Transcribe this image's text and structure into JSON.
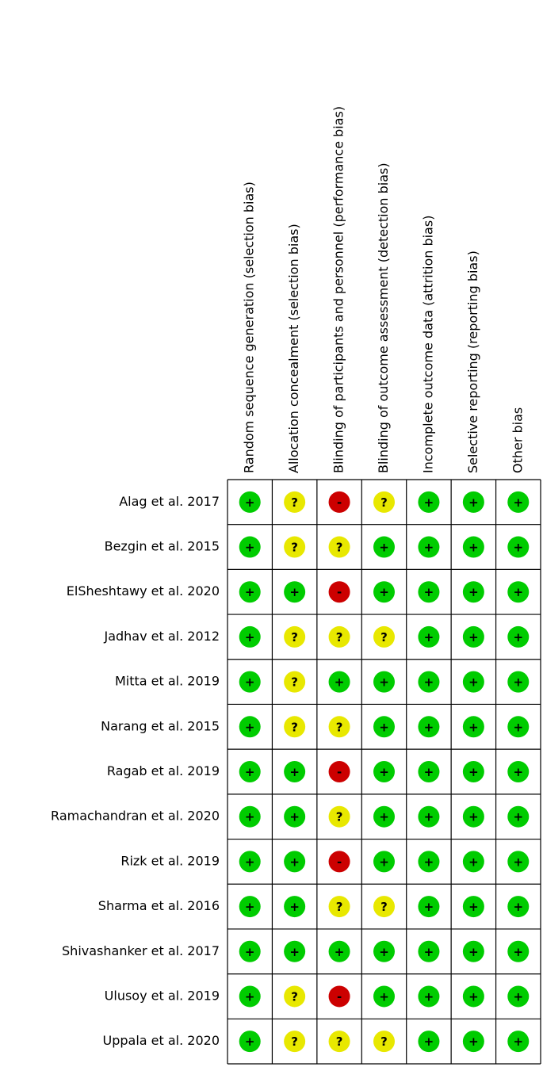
{
  "table": {
    "columns": [
      "Random sequence generation (selection bias)",
      "Allocation concealment (selection bias)",
      "Blinding of participants and personnel (performance bias)",
      "Blinding of outcome assessment (detection bias)",
      "Incomplete outcome data (attrition bias)",
      "Selective reporting (reporting bias)",
      "Other bias"
    ],
    "rows": [
      {
        "study": "Alag et al. 2017",
        "judgments": [
          "+",
          "?",
          "-",
          "?",
          "+",
          "+",
          "+"
        ]
      },
      {
        "study": "Bezgin et al. 2015",
        "judgments": [
          "+",
          "?",
          "?",
          "+",
          "+",
          "+",
          "+"
        ]
      },
      {
        "study": "ElSheshtawy et al. 2020",
        "judgments": [
          "+",
          "+",
          "-",
          "+",
          "+",
          "+",
          "+"
        ]
      },
      {
        "study": "Jadhav et al. 2012",
        "judgments": [
          "+",
          "?",
          "?",
          "?",
          "+",
          "+",
          "+"
        ]
      },
      {
        "study": "Mitta et al. 2019",
        "judgments": [
          "+",
          "?",
          "+",
          "+",
          "+",
          "+",
          "+"
        ]
      },
      {
        "study": "Narang et al. 2015",
        "judgments": [
          "+",
          "?",
          "?",
          "+",
          "+",
          "+",
          "+"
        ]
      },
      {
        "study": "Ragab et al. 2019",
        "judgments": [
          "+",
          "+",
          "-",
          "+",
          "+",
          "+",
          "+"
        ]
      },
      {
        "study": "Ramachandran et al. 2020",
        "judgments": [
          "+",
          "+",
          "?",
          "+",
          "+",
          "+",
          "+"
        ]
      },
      {
        "study": "Rizk et al. 2019",
        "judgments": [
          "+",
          "+",
          "-",
          "+",
          "+",
          "+",
          "+"
        ]
      },
      {
        "study": "Sharma et al. 2016",
        "judgments": [
          "+",
          "+",
          "?",
          "?",
          "+",
          "+",
          "+"
        ]
      },
      {
        "study": "Shivashanker et al. 2017",
        "judgments": [
          "+",
          "+",
          "+",
          "+",
          "+",
          "+",
          "+"
        ]
      },
      {
        "study": "Ulusoy et al. 2019",
        "judgments": [
          "+",
          "?",
          "-",
          "+",
          "+",
          "+",
          "+"
        ]
      },
      {
        "study": "Uppala et al. 2020",
        "judgments": [
          "+",
          "?",
          "?",
          "?",
          "+",
          "+",
          "+"
        ]
      }
    ]
  }
}
